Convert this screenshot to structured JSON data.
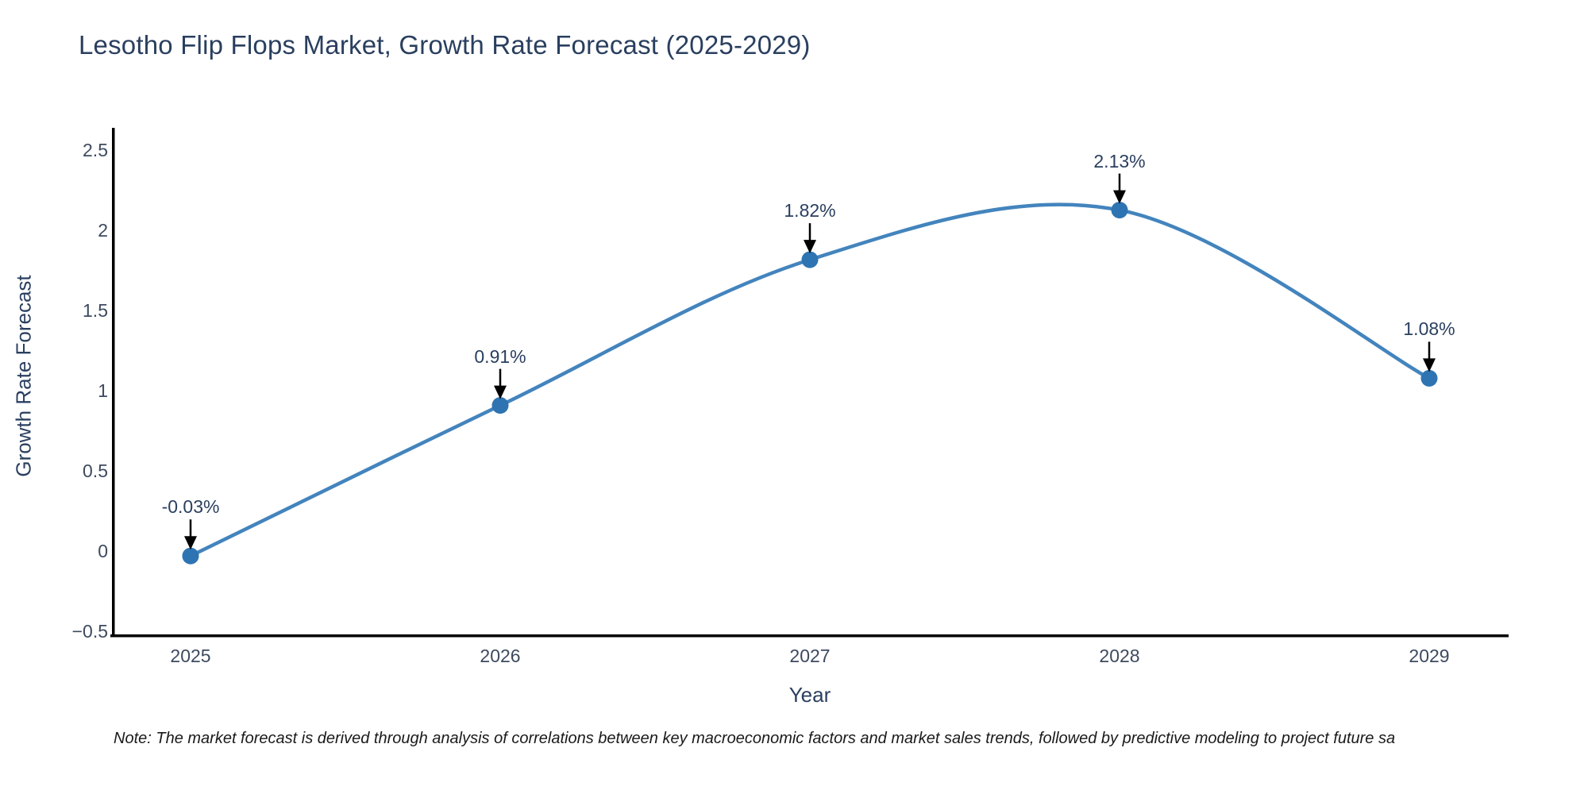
{
  "chart": {
    "title": "Lesotho Flip Flops Market, Growth Rate Forecast (2025-2029)",
    "xlabel": "Year",
    "ylabel": "Growth Rate Forecast",
    "note": "Note: The market forecast is derived through analysis of correlations between key macroeconomic factors and market sales trends, followed by predictive modeling to project future sa"
  },
  "chart_data": {
    "type": "line",
    "title": "Lesotho Flip Flops Market, Growth Rate Forecast (2025-2029)",
    "xlabel": "Year",
    "ylabel": "Growth Rate Forecast",
    "x": [
      2025,
      2026,
      2027,
      2028,
      2029
    ],
    "series": [
      {
        "name": "Growth Rate Forecast",
        "values": [
          -0.03,
          0.91,
          1.82,
          2.13,
          1.08
        ]
      }
    ],
    "point_labels": [
      "-0.03%",
      "0.91%",
      "1.82%",
      "2.13%",
      "1.08%"
    ],
    "xtick_labels": [
      "2025",
      "2026",
      "2027",
      "2028",
      "2029"
    ],
    "ytick_values": [
      -0.5,
      0,
      0.5,
      1,
      1.5,
      2,
      2.5
    ],
    "ytick_labels": [
      "−0.5",
      "0",
      "0.5",
      "1",
      "1.5",
      "2",
      "2.5"
    ],
    "ylim": [
      -0.5,
      2.5
    ],
    "line_shape": "spline",
    "grid": false,
    "legend": "none",
    "annotations_style": "black down arrows pointing at each data point",
    "colors": {
      "line": "#4384bd",
      "marker": "#2e74b2",
      "arrow": "#000000",
      "axis": "#000000",
      "title": "#2a3f5f",
      "tick": "#3d4a5f"
    }
  }
}
